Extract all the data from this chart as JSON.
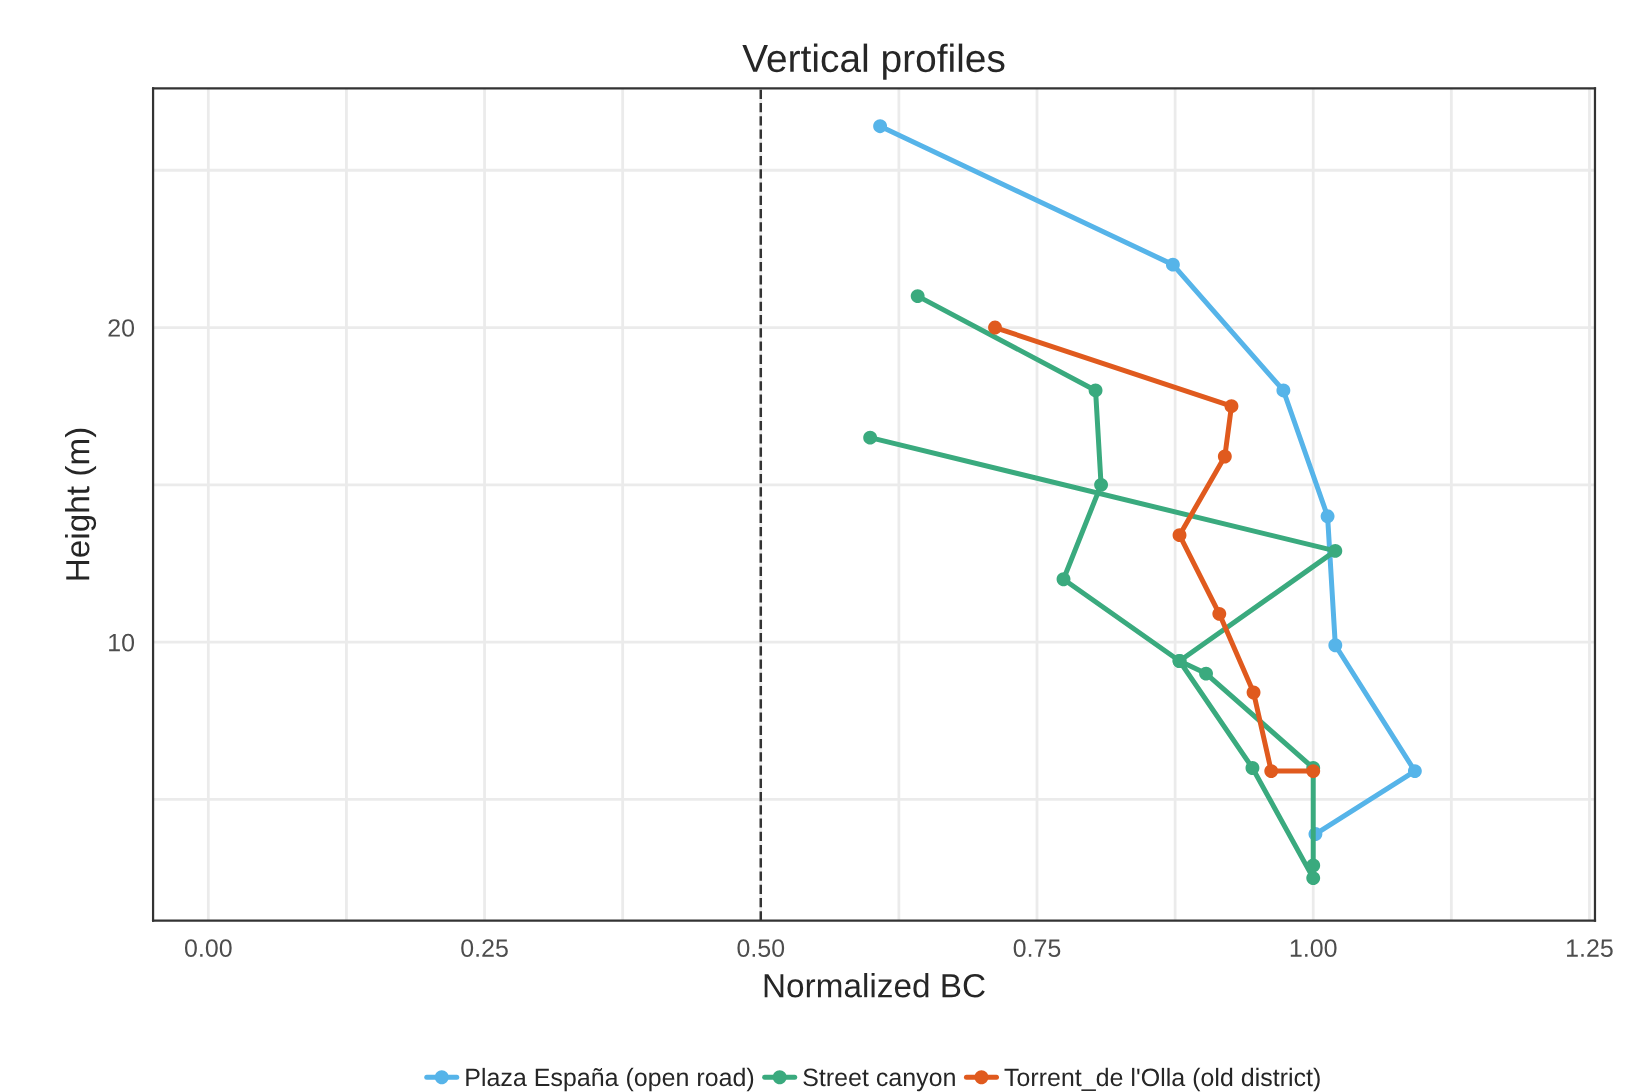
{
  "chart_data": {
    "type": "line",
    "title": "Vertical profiles",
    "xlabel": "Normalized BC",
    "ylabel": "Height (m)",
    "series": [
      {
        "name": "Plaza España (open road)",
        "color": "#56b4e9",
        "x": [
          0.608,
          0.873,
          0.973,
          1.013,
          1.02,
          1.092,
          1.002
        ],
        "values": [
          26.4,
          22.0,
          18.0,
          14.0,
          9.9,
          5.9,
          3.9
        ]
      },
      {
        "name": "Street canyon",
        "color": "#3aaa7e",
        "x": [
          0.642,
          0.803,
          0.808,
          0.774,
          0.879,
          0.945,
          1.0,
          1.0,
          1.0,
          0.903,
          0.879,
          1.02,
          0.599
        ],
        "values": [
          21.0,
          18.0,
          15.0,
          12.0,
          9.4,
          6.0,
          2.5,
          2.9,
          6.0,
          9.0,
          9.4,
          12.9,
          16.5
        ]
      },
      {
        "name": "Torrent_de l'Olla (old district)",
        "color": "#e05a1e",
        "x": [
          0.712,
          0.926,
          0.92,
          0.879,
          0.915,
          0.946,
          0.962,
          1.0
        ],
        "values": [
          20.0,
          17.5,
          15.9,
          13.4,
          10.9,
          8.4,
          5.9,
          5.9
        ]
      }
    ],
    "xlim": [
      -0.05,
      1.255
    ],
    "xticks": [
      {
        "value": 0,
        "label": "0.00"
      },
      {
        "value": 0.25,
        "label": "0.25"
      },
      {
        "value": 0.5,
        "label": "0.50"
      },
      {
        "value": 0.75,
        "label": "0.75"
      },
      {
        "value": 1.0,
        "label": "1.00"
      },
      {
        "value": 1.25,
        "label": "1.25"
      }
    ],
    "ylim": [
      1.15,
      27.6
    ],
    "yticks": [
      10,
      20
    ],
    "ref_lines": [
      {
        "axis": "x",
        "value": 0.5,
        "color": "#333333",
        "line_style": "dashed"
      }
    ],
    "grid": true,
    "legend": "bottom",
    "marker": "circle",
    "line_style": "solid"
  }
}
